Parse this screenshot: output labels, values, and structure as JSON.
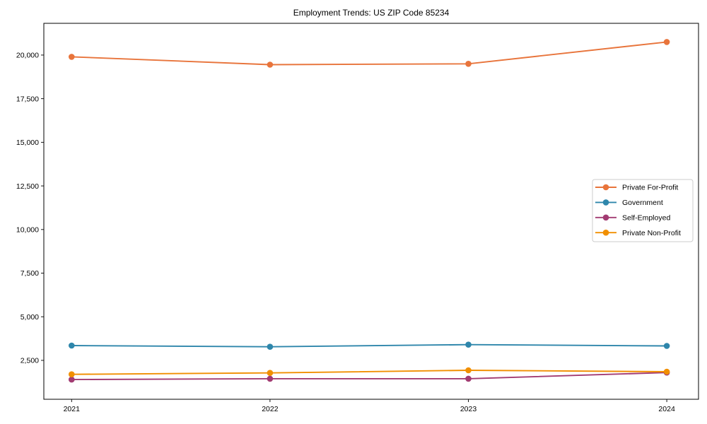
{
  "figure": {
    "background": "#ffffff"
  },
  "chart_data": {
    "type": "line",
    "title": "Employment Trends: US ZIP Code 85234",
    "xlabel": "",
    "ylabel": "",
    "x": [
      2021,
      2022,
      2023,
      2024
    ],
    "x_tick_labels": [
      "2021",
      "2022",
      "2023",
      "2024"
    ],
    "yticks": [
      2500,
      5000,
      7500,
      10000,
      12500,
      15000,
      17500,
      20000
    ],
    "ytick_labels": [
      "2,500",
      "5,000",
      "7,500",
      "10,000",
      "12,500",
      "15,000",
      "17,500",
      "20,000"
    ],
    "xlim": [
      2020.86,
      2024.16
    ],
    "ylim": [
      270,
      21820
    ],
    "grid": false,
    "legend_position": "center-right",
    "series": [
      {
        "name": "Private For-Profit",
        "color": "#E8743B",
        "values": [
          19900,
          19450,
          19500,
          20750
        ]
      },
      {
        "name": "Government",
        "color": "#2E86AB",
        "values": [
          3350,
          3280,
          3400,
          3330
        ]
      },
      {
        "name": "Self-Employed",
        "color": "#A23B72",
        "values": [
          1400,
          1450,
          1450,
          1800
        ]
      },
      {
        "name": "Private Non-Profit",
        "color": "#F18F01",
        "values": [
          1700,
          1780,
          1930,
          1850
        ]
      }
    ],
    "axis_color": "#000000",
    "legend_border_color": "#cccccc",
    "legend_background": "#ffffff"
  }
}
